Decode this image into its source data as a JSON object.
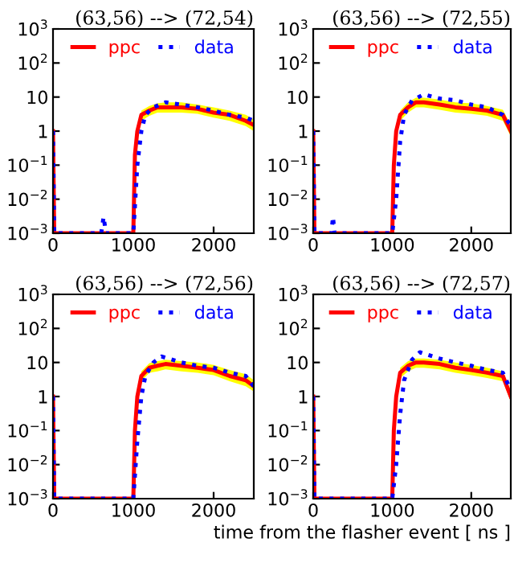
{
  "chart_data": [
    {
      "type": "line",
      "title": "(63,56) --> (72,54)",
      "log": "y",
      "legend": "top",
      "grid": false,
      "xlim": [
        0,
        2500
      ],
      "xticks": [
        0,
        1000,
        2000
      ],
      "ylim": [
        0.001,
        1000
      ],
      "yticks": [
        {
          "value": 0.001,
          "label": "10$^{−3}$"
        },
        {
          "value": 0.01,
          "label": "10$^{−2}$"
        },
        {
          "value": 0.1,
          "label": "10$^{−1}$"
        },
        1,
        10,
        {
          "value": 100,
          "label": "10$^{2}$"
        },
        {
          "value": 1000,
          "label": "10$^{3}$"
        }
      ],
      "series": [
        {
          "name": "ppc",
          "color": "#ff0000",
          "line_style": "solid",
          "x": [
            0,
            15,
            1000,
            1020,
            1050,
            1100,
            1200,
            1300,
            1400,
            1600,
            1800,
            2000,
            2200,
            2400,
            2500
          ],
          "values": [
            1,
            0.001,
            0.001,
            0.2,
            1,
            3,
            4,
            5,
            5,
            5,
            4.5,
            3.5,
            3,
            2,
            1.5
          ],
          "lower": [
            null,
            null,
            null,
            null,
            null,
            2,
            2.8,
            3.5,
            3.5,
            3.5,
            3.2,
            2.5,
            2,
            1.4,
            1
          ],
          "upper": [
            null,
            null,
            null,
            null,
            null,
            4,
            5.5,
            6.5,
            7,
            7,
            6,
            5,
            4,
            3,
            2.2
          ]
        },
        {
          "name": "data",
          "color": "#0000ff",
          "line_style": "dotted",
          "x": [
            0,
            15,
            600,
            630,
            660,
            1000,
            1050,
            1100,
            1150,
            1250,
            1400,
            1600,
            1800,
            2000,
            2200,
            2400,
            2500
          ],
          "values": [
            1,
            0.001,
            0.001,
            0.003,
            0.001,
            0.001,
            0.1,
            1,
            3,
            5,
            7,
            6,
            5,
            4,
            3,
            2.5,
            2
          ]
        }
      ]
    },
    {
      "type": "line",
      "title": "(63,56) --> (72,55)",
      "log": "y",
      "legend": "top",
      "grid": false,
      "xlim": [
        0,
        2500
      ],
      "xticks": [
        0,
        1000,
        2000
      ],
      "ylim": [
        0.001,
        1000
      ],
      "yticks": [
        {
          "value": 0.001,
          "label": "10$^{−3}$"
        },
        {
          "value": 0.01,
          "label": "10$^{−2}$"
        },
        {
          "value": 0.1,
          "label": "10$^{−1}$"
        },
        1,
        10,
        {
          "value": 100,
          "label": "10$^{2}$"
        },
        {
          "value": 1000,
          "label": "10$^{3}$"
        }
      ],
      "series": [
        {
          "name": "ppc",
          "color": "#ff0000",
          "line_style": "solid",
          "x": [
            0,
            15,
            1000,
            1020,
            1050,
            1100,
            1200,
            1300,
            1400,
            1600,
            1800,
            2000,
            2200,
            2400,
            2500
          ],
          "values": [
            1,
            0.001,
            0.001,
            0.1,
            1,
            3,
            5,
            7,
            7,
            6,
            5,
            4.5,
            4,
            3,
            1
          ],
          "lower": [
            null,
            null,
            null,
            null,
            null,
            2,
            3.5,
            5,
            5,
            4.2,
            3.5,
            3.2,
            2.8,
            2,
            0.7
          ],
          "upper": [
            null,
            null,
            null,
            null,
            null,
            4,
            7,
            9.5,
            9.5,
            8.5,
            7,
            6.5,
            5.5,
            4.2,
            1.5
          ]
        },
        {
          "name": "data",
          "color": "#0000ff",
          "line_style": "dotted",
          "x": [
            0,
            15,
            230,
            250,
            270,
            1000,
            1050,
            1100,
            1150,
            1250,
            1400,
            1600,
            1800,
            2000,
            2200,
            2400,
            2500
          ],
          "values": [
            1,
            0.001,
            0.001,
            0.003,
            0.001,
            0.001,
            0.01,
            0.5,
            3,
            8,
            12,
            9,
            8,
            6,
            5,
            3,
            1.5
          ]
        }
      ]
    },
    {
      "type": "line",
      "title": "(63,56) --> (72,56)",
      "log": "y",
      "legend": "top",
      "grid": false,
      "xlim": [
        0,
        2500
      ],
      "xticks": [
        0,
        1000,
        2000
      ],
      "ylim": [
        0.001,
        1000
      ],
      "yticks": [
        {
          "value": 0.001,
          "label": "10$^{−3}$"
        },
        {
          "value": 0.01,
          "label": "10$^{−2}$"
        },
        {
          "value": 0.1,
          "label": "10$^{−1}$"
        },
        1,
        10,
        {
          "value": 100,
          "label": "10$^{2}$"
        },
        {
          "value": 1000,
          "label": "10$^{3}$"
        }
      ],
      "series": [
        {
          "name": "ppc",
          "color": "#ff0000",
          "line_style": "solid",
          "x": [
            0,
            15,
            1000,
            1020,
            1050,
            1100,
            1200,
            1300,
            1400,
            1600,
            1800,
            2000,
            2200,
            2400,
            2500
          ],
          "values": [
            1,
            0.001,
            0.001,
            0.1,
            1,
            4,
            7,
            8,
            9,
            8,
            7,
            6,
            4,
            3,
            2
          ],
          "lower": [
            null,
            null,
            null,
            null,
            null,
            2.8,
            5,
            5.5,
            6.3,
            5.5,
            5,
            4.2,
            2.8,
            2,
            1.4
          ],
          "upper": [
            null,
            null,
            null,
            null,
            null,
            5.5,
            9.5,
            11,
            12,
            11,
            10,
            8.5,
            6,
            4.5,
            3
          ]
        },
        {
          "name": "data",
          "color": "#0000ff",
          "line_style": "dotted",
          "x": [
            0,
            15,
            1000,
            1050,
            1100,
            1150,
            1250,
            1350,
            1600,
            1800,
            2000,
            2200,
            2400,
            2500
          ],
          "values": [
            1,
            0.001,
            0.001,
            0.05,
            1,
            4,
            10,
            15,
            10,
            8,
            7,
            5,
            4,
            2
          ]
        }
      ]
    },
    {
      "type": "line",
      "title": "(63,56) --> (72,57)",
      "log": "y",
      "legend": "top",
      "grid": false,
      "xlabel": "time from the flasher event [ ns ]",
      "xlim": [
        0,
        2500
      ],
      "xticks": [
        0,
        1000,
        2000
      ],
      "ylim": [
        0.001,
        1000
      ],
      "yticks": [
        {
          "value": 0.001,
          "label": "10$^{−3}$"
        },
        {
          "value": 0.01,
          "label": "10$^{−2}$"
        },
        {
          "value": 0.1,
          "label": "10$^{−1}$"
        },
        1,
        10,
        {
          "value": 100,
          "label": "10$^{2}$"
        },
        {
          "value": 1000,
          "label": "10$^{3}$"
        }
      ],
      "series": [
        {
          "name": "ppc",
          "color": "#ff0000",
          "line_style": "solid",
          "x": [
            0,
            15,
            1000,
            1020,
            1050,
            1100,
            1200,
            1300,
            1400,
            1600,
            1800,
            2000,
            2200,
            2400,
            2500
          ],
          "values": [
            1,
            0.001,
            0.001,
            0.1,
            1,
            5,
            8,
            10,
            10,
            9,
            7,
            6,
            5,
            4,
            1
          ],
          "lower": [
            null,
            null,
            null,
            null,
            null,
            3.5,
            5.5,
            7,
            7,
            6.3,
            5,
            4.2,
            3.5,
            2.8,
            0.7
          ],
          "upper": [
            null,
            null,
            null,
            null,
            null,
            7,
            11,
            13,
            13,
            12,
            10,
            8.5,
            7,
            5.5,
            1.5
          ]
        },
        {
          "name": "data",
          "color": "#0000ff",
          "line_style": "dotted",
          "x": [
            0,
            15,
            1000,
            1050,
            1100,
            1150,
            1250,
            1350,
            1600,
            1800,
            2000,
            2200,
            2400,
            2500
          ],
          "values": [
            1,
            0.001,
            0.001,
            0.01,
            0.3,
            3,
            12,
            20,
            13,
            10,
            8,
            6,
            5,
            1.5
          ]
        }
      ]
    }
  ]
}
